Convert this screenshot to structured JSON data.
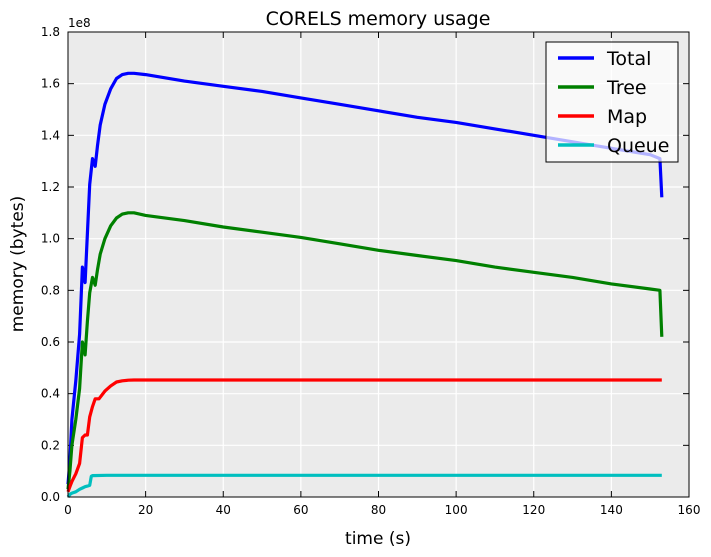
{
  "chart_data": {
    "type": "line",
    "title": "CORELS memory usage",
    "xlabel": "time (s)",
    "ylabel": "memory (bytes)",
    "y_offset_label": "1e8",
    "xlim": [
      0,
      160
    ],
    "ylim": [
      0,
      180000000
    ],
    "xticks": [
      0,
      20,
      40,
      60,
      80,
      100,
      120,
      140,
      160
    ],
    "yticks": [
      0,
      20000000,
      40000000,
      60000000,
      80000000,
      100000000,
      120000000,
      140000000,
      160000000,
      180000000
    ],
    "xtick_labels": [
      "0",
      "20",
      "40",
      "60",
      "80",
      "100",
      "120",
      "140",
      "160"
    ],
    "ytick_labels": [
      "0.0",
      "0.2",
      "0.4",
      "0.6",
      "0.8",
      "1.0",
      "1.2",
      "1.4",
      "1.6",
      "1.8"
    ],
    "grid": true,
    "background": "#ebebeb",
    "legend_position": "top-right",
    "series": [
      {
        "name": "Total",
        "color": "#0000ff",
        "x": [
          0,
          0.5,
          1,
          2,
          3,
          3.7,
          4.4,
          5,
          5.6,
          6.3,
          7,
          7.6,
          8.3,
          9.5,
          11,
          12.5,
          14,
          15.5,
          17,
          20,
          30,
          40,
          50,
          60,
          70,
          80,
          90,
          100,
          110,
          120,
          130,
          140,
          150,
          152.5,
          153
        ],
        "y": [
          5000000,
          14000000,
          30000000,
          45000000,
          63000000,
          89000000,
          83000000,
          102000000,
          121000000,
          131000000,
          128000000,
          136000000,
          144000000,
          152000000,
          158000000,
          162000000,
          163500000,
          164000000,
          164000000,
          163500000,
          161000000,
          159000000,
          157000000,
          154500000,
          152000000,
          149500000,
          147000000,
          145000000,
          142500000,
          140000000,
          137500000,
          135000000,
          132500000,
          131000000,
          116000000
        ]
      },
      {
        "name": "Tree",
        "color": "#008000",
        "x": [
          0,
          0.5,
          1,
          2,
          3,
          3.7,
          4.4,
          5,
          5.6,
          6.3,
          7,
          7.6,
          8.3,
          9.5,
          11,
          12.5,
          14,
          15.5,
          17,
          20,
          30,
          40,
          50,
          60,
          70,
          80,
          90,
          100,
          110,
          120,
          130,
          140,
          150,
          152.5,
          153
        ],
        "y": [
          3000000,
          10000000,
          20000000,
          30000000,
          42000000,
          60000000,
          55000000,
          68000000,
          79000000,
          85000000,
          82000000,
          88000000,
          94000000,
          100000000,
          105000000,
          108000000,
          109500000,
          110000000,
          110000000,
          109000000,
          107000000,
          104500000,
          102500000,
          100500000,
          98000000,
          95500000,
          93500000,
          91500000,
          89000000,
          87000000,
          85000000,
          82500000,
          80500000,
          80000000,
          62000000
        ]
      },
      {
        "name": "Map",
        "color": "#ff0000",
        "x": [
          0,
          0.5,
          1,
          2,
          3,
          3.7,
          4.4,
          5,
          5.6,
          6.3,
          7,
          8,
          9.5,
          11,
          12.5,
          14,
          15.5,
          17,
          20,
          50,
          100,
          153
        ],
        "y": [
          2000000,
          4000000,
          6000000,
          9000000,
          13000000,
          23000000,
          24000000,
          24000000,
          31000000,
          35000000,
          38000000,
          38000000,
          41000000,
          43000000,
          44500000,
          45000000,
          45200000,
          45300000,
          45300000,
          45300000,
          45300000,
          45300000
        ]
      },
      {
        "name": "Queue",
        "color": "#00bfbf",
        "x": [
          0,
          0.5,
          1,
          2,
          3,
          3.7,
          4.4,
          5,
          5.6,
          6,
          6.3,
          10,
          50,
          100,
          153
        ],
        "y": [
          0,
          1000000,
          1500000,
          2000000,
          3000000,
          3500000,
          4000000,
          4200000,
          4500000,
          8000000,
          8300000,
          8400000,
          8400000,
          8400000,
          8400000
        ]
      }
    ]
  }
}
